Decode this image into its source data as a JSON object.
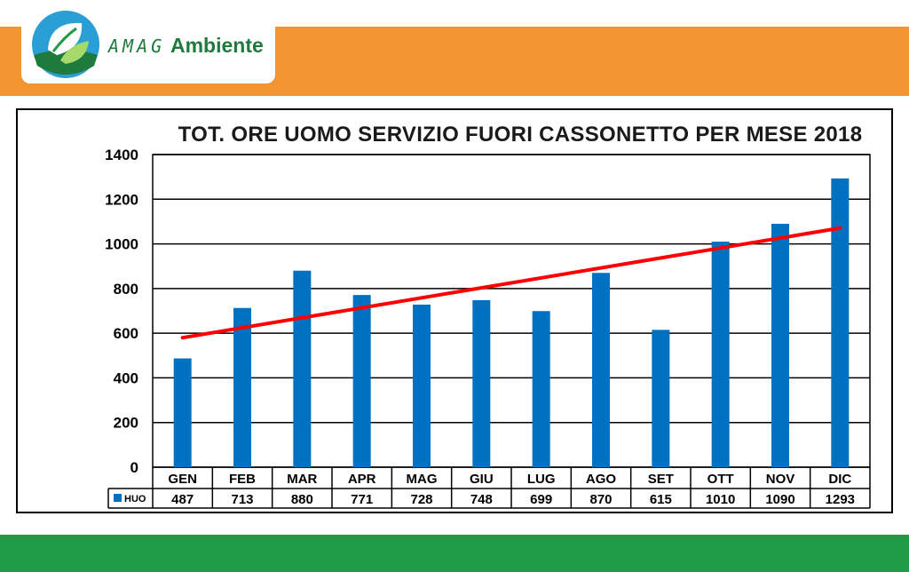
{
  "header": {
    "brand_amag": "AMAG",
    "brand_name": "Ambiente",
    "colors": {
      "orange": "#f39433",
      "green": "#1f9a46"
    },
    "logo_icon": "leaf-globe-icon"
  },
  "chart_data": {
    "type": "bar",
    "title": "TOT. ORE UOMO SERVIZIO FUORI CASSONETTO PER MESE 2018",
    "categories": [
      "GEN",
      "FEB",
      "MAR",
      "APR",
      "MAG",
      "GIU",
      "LUG",
      "AGO",
      "SET",
      "OTT",
      "NOV",
      "DIC"
    ],
    "series": [
      {
        "name": "HUO",
        "values": [
          487,
          713,
          880,
          771,
          728,
          748,
          699,
          870,
          615,
          1010,
          1090,
          1293
        ],
        "color": "#0070c0"
      }
    ],
    "trendline": {
      "type": "linear",
      "color": "#ff0000"
    },
    "ylim": [
      0,
      1400
    ],
    "yticks": [
      0,
      200,
      400,
      600,
      800,
      1000,
      1200,
      1400
    ],
    "grid": true,
    "data_table": true,
    "legend_placement": "data-table"
  }
}
